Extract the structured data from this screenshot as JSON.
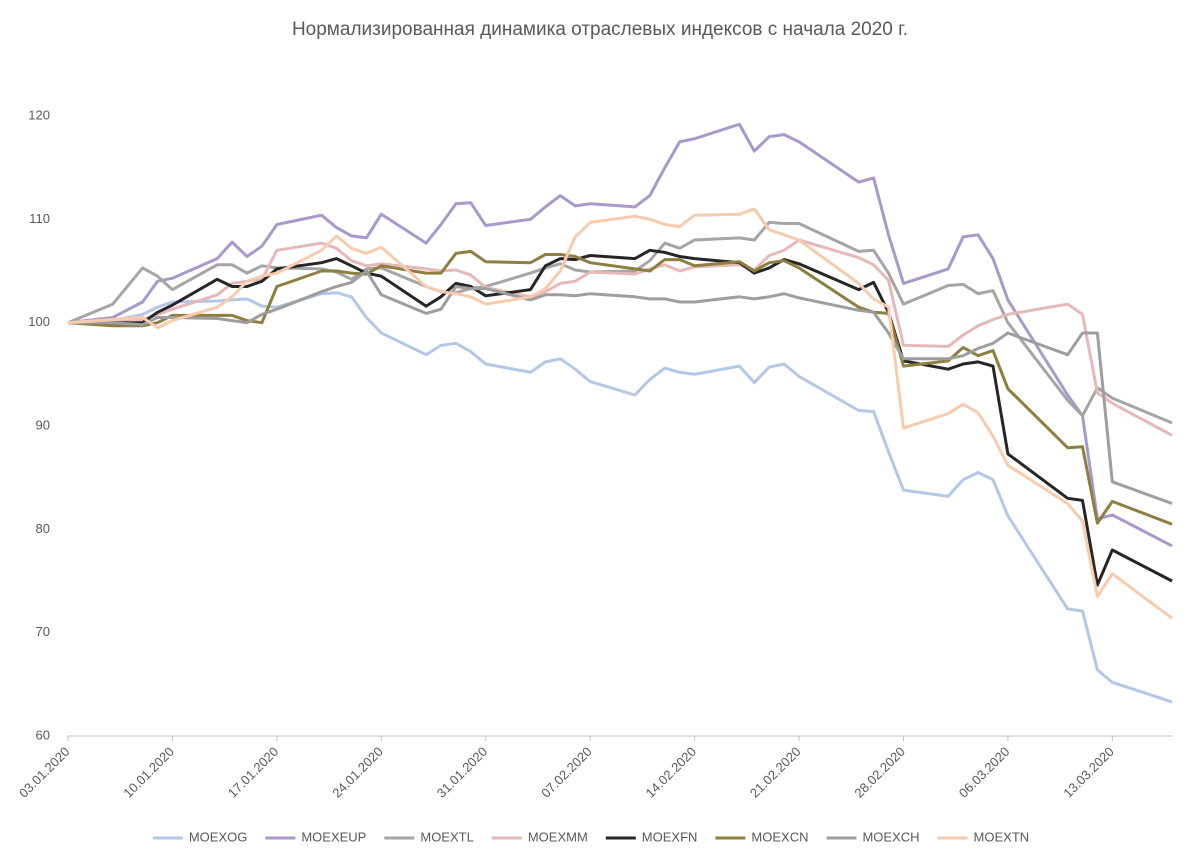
{
  "chart_data": {
    "type": "line",
    "title": "Нормализированная динамика отраслевых индексов с начала 2020 г.",
    "x": [
      "03.01.2020",
      "06.01.2020",
      "08.01.2020",
      "09.01.2020",
      "10.01.2020",
      "13.01.2020",
      "14.01.2020",
      "15.01.2020",
      "16.01.2020",
      "17.01.2020",
      "20.01.2020",
      "21.01.2020",
      "22.01.2020",
      "23.01.2020",
      "24.01.2020",
      "27.01.2020",
      "28.01.2020",
      "29.01.2020",
      "30.01.2020",
      "31.01.2020",
      "03.02.2020",
      "04.02.2020",
      "05.02.2020",
      "06.02.2020",
      "07.02.2020",
      "10.02.2020",
      "11.02.2020",
      "12.02.2020",
      "13.02.2020",
      "14.02.2020",
      "17.02.2020",
      "18.02.2020",
      "19.02.2020",
      "20.02.2020",
      "21.02.2020",
      "25.02.2020",
      "26.02.2020",
      "27.02.2020",
      "28.02.2020",
      "02.03.2020",
      "03.03.2020",
      "04.03.2020",
      "05.03.2020",
      "06.03.2020",
      "10.03.2020",
      "11.03.2020",
      "12.03.2020",
      "13.03.2020",
      "17.03.2020"
    ],
    "series": [
      {
        "name": "MOEXOG",
        "color": "#b4c7e7",
        "values": [
          100,
          100.2,
          100.8,
          101.5,
          102,
          102.1,
          102.2,
          102.3,
          101.6,
          101.5,
          102.8,
          102.9,
          102.5,
          100.5,
          99,
          96.9,
          97.8,
          98,
          97.2,
          96,
          95.2,
          96.2,
          96.5,
          95.5,
          94.3,
          93,
          94.5,
          95.6,
          95.2,
          95,
          95.8,
          94.2,
          95.7,
          96,
          94.8,
          91.5,
          91.4,
          87.5,
          83.8,
          83.2,
          84.8,
          85.5,
          84.8,
          81.3,
          72.3,
          72.1,
          66.4,
          65.2,
          63.3
        ]
      },
      {
        "name": "MOEXEUP",
        "color": "#a898cc",
        "values": [
          100,
          100.5,
          102,
          104,
          104.3,
          106.2,
          107.8,
          106.4,
          107.4,
          109.5,
          110.4,
          109.2,
          108.4,
          108.2,
          110.5,
          107.7,
          109.5,
          111.5,
          111.6,
          109.4,
          110,
          111.2,
          112.3,
          111.3,
          111.5,
          111.2,
          112.3,
          115,
          117.5,
          117.8,
          119.2,
          116.6,
          118,
          118.2,
          117.5,
          113.6,
          114,
          108.5,
          103.8,
          105.2,
          108.3,
          108.5,
          106.2,
          102.2,
          93,
          91,
          81,
          81.4,
          78.4
        ]
      },
      {
        "name": "MOEXTL",
        "color": "#a5a5a5",
        "values": [
          100,
          101.8,
          105.3,
          104.5,
          103.2,
          105.6,
          105.6,
          104.8,
          105.5,
          105.3,
          105.2,
          104.9,
          104.2,
          105.2,
          105.3,
          103.5,
          103,
          102.9,
          103.3,
          103.5,
          104.8,
          105.3,
          105.7,
          105.1,
          104.9,
          105,
          106,
          107.7,
          107.2,
          108,
          108.2,
          108,
          109.7,
          109.6,
          109.6,
          106.9,
          107,
          104.8,
          101.8,
          103.6,
          103.7,
          102.8,
          103.1,
          100,
          92.5,
          91,
          93.7,
          92.7,
          90.3
        ]
      },
      {
        "name": "MOEXMM",
        "color": "#e6b9b8",
        "values": [
          100,
          100.3,
          100.3,
          100.8,
          101.3,
          102.7,
          103.8,
          104,
          104.2,
          107,
          107.7,
          107.2,
          106,
          105.5,
          105.7,
          105.2,
          105,
          105.1,
          104.6,
          103.4,
          102.5,
          103,
          103.8,
          104,
          104.9,
          104.7,
          105.2,
          105.6,
          105,
          105.4,
          105.6,
          105.1,
          106.5,
          107,
          108,
          106.3,
          105.6,
          104.1,
          97.8,
          97.7,
          98.8,
          99.7,
          100.3,
          100.8,
          101.8,
          100.8,
          93.2,
          92.2,
          89.1
        ]
      },
      {
        "name": "MOEXFN",
        "color": "#262626",
        "values": [
          100,
          100,
          100,
          101,
          101.7,
          104.2,
          103.5,
          103.5,
          104,
          105.2,
          105.8,
          106.2,
          105.5,
          104.8,
          104.5,
          101.6,
          102.5,
          103.8,
          103.5,
          102.6,
          103.2,
          105.5,
          106.2,
          106.1,
          106.5,
          106.2,
          107,
          106.8,
          106.4,
          106.2,
          105.8,
          104.8,
          105.3,
          106.1,
          105.7,
          103.2,
          103.9,
          101,
          96.3,
          95.5,
          96,
          96.2,
          95.8,
          87.3,
          83,
          82.8,
          74.6,
          78,
          75
        ]
      },
      {
        "name": "MOEXCN",
        "color": "#8c7f3f",
        "values": [
          100,
          99.7,
          99.7,
          100,
          100.7,
          100.7,
          100.7,
          100.2,
          100,
          103.5,
          105,
          105,
          104.8,
          104.7,
          105.5,
          104.8,
          104.8,
          106.7,
          106.9,
          105.9,
          105.8,
          106.6,
          106.6,
          106.4,
          105.8,
          105.2,
          105,
          106.1,
          106.1,
          105.5,
          105.9,
          105,
          105.8,
          106,
          105.3,
          101.5,
          101,
          100.9,
          95.8,
          96.3,
          97.6,
          96.8,
          97.3,
          93.6,
          87.9,
          88,
          80.6,
          82.7,
          80.5
        ]
      },
      {
        "name": "MOEXCH",
        "color": "#9e9e9e",
        "values": [
          100,
          100,
          99.8,
          100.5,
          100.5,
          100.4,
          100.2,
          100,
          100.8,
          101.3,
          103,
          103.5,
          103.9,
          105,
          102.7,
          100.9,
          101.3,
          103.5,
          103.3,
          103.3,
          102.2,
          102.7,
          102.7,
          102.6,
          102.8,
          102.5,
          102.3,
          102.3,
          102,
          102,
          102.5,
          102.3,
          102.5,
          102.8,
          102.4,
          101.2,
          101,
          99,
          96.5,
          96.5,
          96.8,
          97.5,
          98,
          99,
          96.9,
          99,
          99,
          84.6,
          82.5
        ]
      },
      {
        "name": "MOEXTN",
        "color": "#f8cbad",
        "values": [
          100,
          100.3,
          100.5,
          99.5,
          100.2,
          101.5,
          102.5,
          104,
          104.5,
          104.8,
          107,
          108.4,
          107.2,
          106.7,
          107.3,
          103.5,
          103,
          102.8,
          102.5,
          101.8,
          102.5,
          103.3,
          105,
          108.3,
          109.7,
          110.3,
          110,
          109.5,
          109.3,
          110.4,
          110.5,
          111,
          109,
          108.5,
          108,
          103.8,
          102.3,
          101.5,
          89.8,
          91.2,
          92.1,
          91.3,
          89,
          86.2,
          82.5,
          80.8,
          73.5,
          75.7,
          71.4
        ]
      }
    ],
    "xlim": [
      "03.01.2020",
      "17.03.2020"
    ],
    "xticks": [
      "03.01.2020",
      "10.01.2020",
      "17.01.2020",
      "24.01.2020",
      "31.01.2020",
      "07.02.2020",
      "14.02.2020",
      "21.02.2020",
      "28.02.2020",
      "06.03.2020",
      "13.03.2020"
    ],
    "ylim": [
      60,
      120
    ],
    "yticks": [
      60,
      70,
      80,
      90,
      100,
      110,
      120
    ],
    "grid": false,
    "legend": "bottom"
  }
}
